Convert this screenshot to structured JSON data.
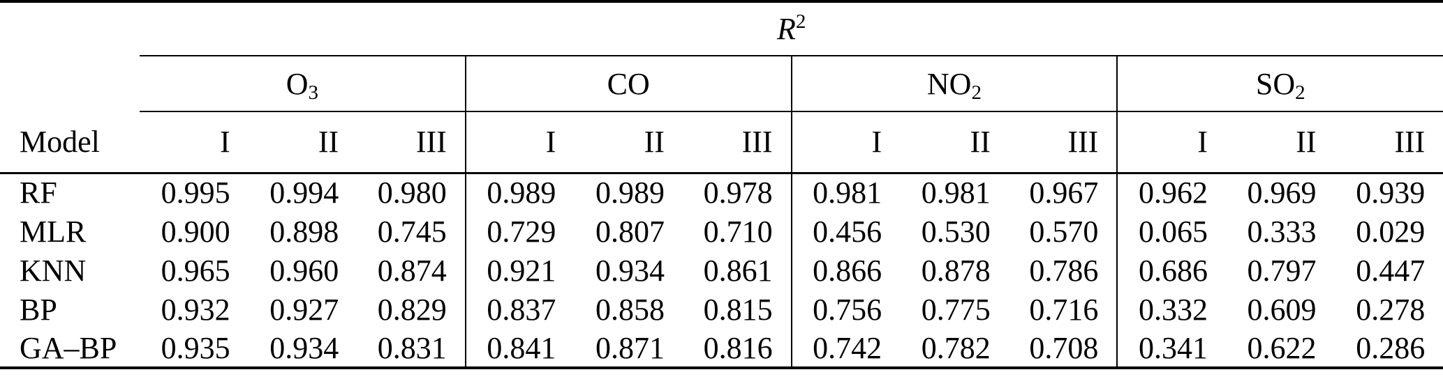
{
  "table": {
    "title": {
      "base": "R",
      "sup": "2"
    },
    "model_header": "Model",
    "groups": [
      {
        "base": "O",
        "sub": "3"
      },
      {
        "base": "CO",
        "sub": ""
      },
      {
        "base": "NO",
        "sub": "2"
      },
      {
        "base": "SO",
        "sub": "2"
      }
    ],
    "subheaders": [
      "I",
      "II",
      "III",
      "I",
      "II",
      "III",
      "I",
      "II",
      "III",
      "I",
      "II",
      "III"
    ],
    "rows": [
      {
        "model": "RF",
        "values": [
          "0.995",
          "0.994",
          "0.980",
          "0.989",
          "0.989",
          "0.978",
          "0.981",
          "0.981",
          "0.967",
          "0.962",
          "0.969",
          "0.939"
        ]
      },
      {
        "model": "MLR",
        "values": [
          "0.900",
          "0.898",
          "0.745",
          "0.729",
          "0.807",
          "0.710",
          "0.456",
          "0.530",
          "0.570",
          "0.065",
          "0.333",
          "0.029"
        ]
      },
      {
        "model": "KNN",
        "values": [
          "0.965",
          "0.960",
          "0.874",
          "0.921",
          "0.934",
          "0.861",
          "0.866",
          "0.878",
          "0.786",
          "0.686",
          "0.797",
          "0.447"
        ]
      },
      {
        "model": "BP",
        "values": [
          "0.932",
          "0.927",
          "0.829",
          "0.837",
          "0.858",
          "0.815",
          "0.756",
          "0.775",
          "0.716",
          "0.332",
          "0.609",
          "0.278"
        ]
      },
      {
        "model": "GA–BP",
        "values": [
          "0.935",
          "0.934",
          "0.831",
          "0.841",
          "0.871",
          "0.816",
          "0.742",
          "0.782",
          "0.708",
          "0.341",
          "0.622",
          "0.286"
        ]
      }
    ],
    "colors": {
      "text": "#000000",
      "background": "#ffffff",
      "rule": "#000000"
    }
  }
}
